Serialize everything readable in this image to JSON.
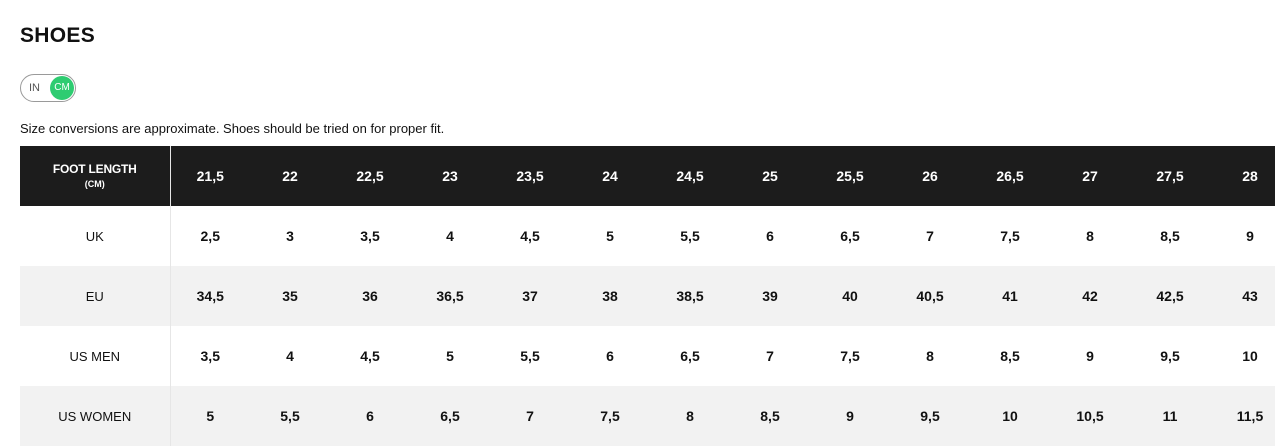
{
  "title": "SHOES",
  "unit_toggle": {
    "in_label": "IN",
    "cm_label": "CM",
    "selected": "CM",
    "active_color": "#2ecc71"
  },
  "note": "Size conversions are approximate. Shoes should be tried on for proper fit.",
  "table": {
    "header": {
      "label": "FOOT LENGTH",
      "sublabel": "(CM)",
      "values": [
        "21,5",
        "22",
        "22,5",
        "23",
        "23,5",
        "24",
        "24,5",
        "25",
        "25,5",
        "26",
        "26,5",
        "27",
        "27,5",
        "28"
      ]
    },
    "rows": [
      {
        "label": "UK",
        "values": [
          "2,5",
          "3",
          "3,5",
          "4",
          "4,5",
          "5",
          "5,5",
          "6",
          "6,5",
          "7",
          "7,5",
          "8",
          "8,5",
          "9"
        ]
      },
      {
        "label": "EU",
        "values": [
          "34,5",
          "35",
          "36",
          "36,5",
          "37",
          "38",
          "38,5",
          "39",
          "40",
          "40,5",
          "41",
          "42",
          "42,5",
          "43"
        ]
      },
      {
        "label": "US MEN",
        "values": [
          "3,5",
          "4",
          "4,5",
          "5",
          "5,5",
          "6",
          "6,5",
          "7",
          "7,5",
          "8",
          "8,5",
          "9",
          "9,5",
          "10"
        ]
      },
      {
        "label": "US WOMEN",
        "values": [
          "5",
          "5,5",
          "6",
          "6,5",
          "7",
          "7,5",
          "8",
          "8,5",
          "9",
          "9,5",
          "10",
          "10,5",
          "11",
          "11,5"
        ]
      }
    ]
  },
  "colors": {
    "header_bg": "#1c1c1c",
    "stripe_bg": "#f2f2f2"
  }
}
